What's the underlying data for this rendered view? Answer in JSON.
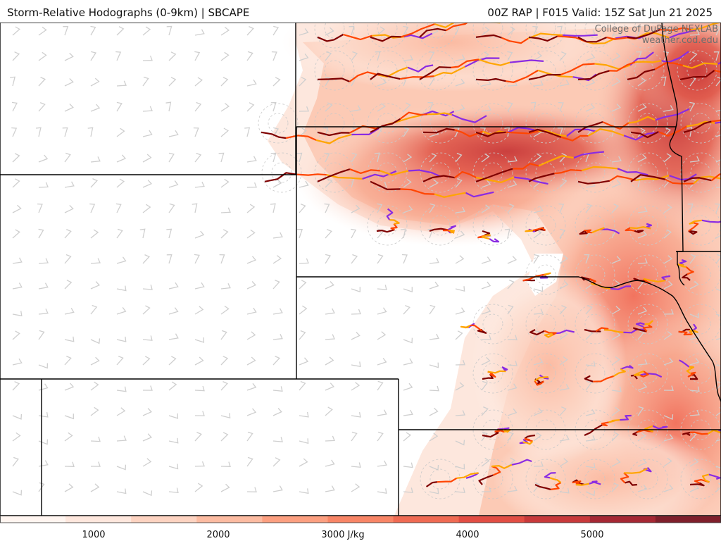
{
  "header": {
    "title": "Storm-Relative Hodographs (0-9km) | SBCAPE",
    "run_info": "00Z RAP | F015 Valid: 15Z Sat Jun 21 2025"
  },
  "credit": {
    "line1": "College of DuPage NEXLAB",
    "line2": "weather.cod.edu"
  },
  "colorbar": {
    "ticks": [
      "1000",
      "2000",
      "3000 J/kg",
      "4000",
      "5000"
    ],
    "colors": [
      "#fff5f0",
      "#fee7dd",
      "#fdd3c1",
      "#fcbba1",
      "#fc9f80",
      "#f88566",
      "#ef6a52",
      "#e24d43",
      "#c8393a",
      "#a52733",
      "#7f1f2b"
    ]
  },
  "map": {
    "cape_color_low": "#fde0d2",
    "cape_color_mid": "#f4826a",
    "cape_color_high": "#d64545",
    "border_color": "#000000",
    "barb_color": "#cfcfcf",
    "hodograph_colors": [
      "#7f0000",
      "#ff4500",
      "#ffa500",
      "#8a2be2"
    ]
  }
}
